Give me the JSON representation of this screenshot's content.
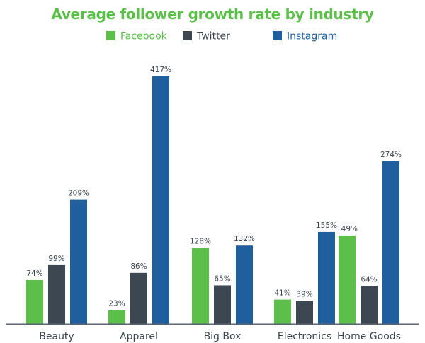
{
  "chart_data": {
    "type": "bar",
    "title": "Average follower growth rate by industry",
    "xlabel": "",
    "ylabel": "",
    "ylim": [
      0,
      430
    ],
    "grid": false,
    "legend_position": "top-center",
    "categories": [
      "Beauty",
      "Apparel",
      "Big Box",
      "Electronics",
      "Home Goods"
    ],
    "value_suffix": "%",
    "series": [
      {
        "name": "Facebook",
        "color": "#5bbf4a",
        "values": [
          74,
          23,
          128,
          41,
          149
        ]
      },
      {
        "name": "Twitter",
        "color": "#3d4752",
        "values": [
          99,
          86,
          65,
          39,
          64
        ]
      },
      {
        "name": "Instagram",
        "color": "#1f5f9e",
        "values": [
          209,
          417,
          132,
          155,
          274
        ]
      }
    ],
    "colors": {
      "title": "#5bbf4a",
      "label_text": "#3d4752",
      "axis": "#5a6470",
      "legend_text_facebook": "#5bbf4a",
      "legend_text_twitter": "#3d4752",
      "legend_text_instagram": "#1f5f9e"
    }
  }
}
